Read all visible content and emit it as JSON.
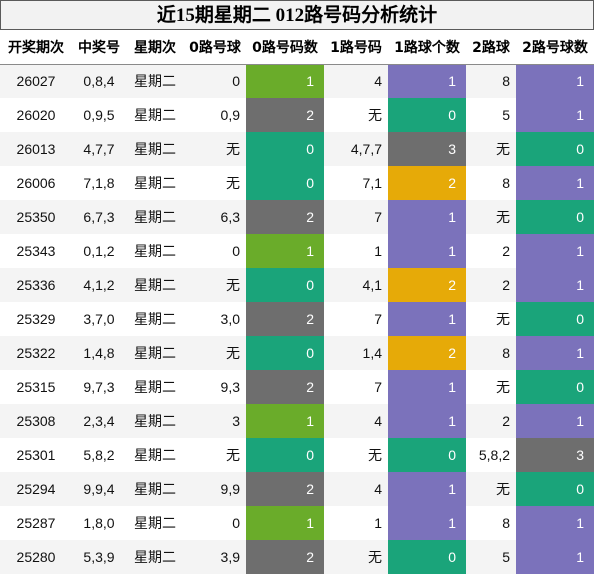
{
  "title": "近15期星期二 012路号码分析统计",
  "headers": [
    "开奖期次",
    "中奖号",
    "星期次",
    "0路号球",
    "0路号码数",
    "1路号码",
    "1路球个数",
    "2路球",
    "2路号球数"
  ],
  "rows": [
    {
      "issue": "26027",
      "num": "0,8,4",
      "wd": "星期二",
      "r0": "0",
      "c0": "1",
      "r1": "4",
      "c1": "1",
      "r2": "8",
      "c2": "1"
    },
    {
      "issue": "26020",
      "num": "0,9,5",
      "wd": "星期二",
      "r0": "0,9",
      "c0": "2",
      "r1": "无",
      "c1": "0",
      "r2": "5",
      "c2": "1"
    },
    {
      "issue": "26013",
      "num": "4,7,7",
      "wd": "星期二",
      "r0": "无",
      "c0": "0",
      "r1": "4,7,7",
      "c1": "3",
      "r2": "无",
      "c2": "0"
    },
    {
      "issue": "26006",
      "num": "7,1,8",
      "wd": "星期二",
      "r0": "无",
      "c0": "0",
      "r1": "7,1",
      "c1": "2",
      "r2": "8",
      "c2": "1"
    },
    {
      "issue": "25350",
      "num": "6,7,3",
      "wd": "星期二",
      "r0": "6,3",
      "c0": "2",
      "r1": "7",
      "c1": "1",
      "r2": "无",
      "c2": "0"
    },
    {
      "issue": "25343",
      "num": "0,1,2",
      "wd": "星期二",
      "r0": "0",
      "c0": "1",
      "r1": "1",
      "c1": "1",
      "r2": "2",
      "c2": "1"
    },
    {
      "issue": "25336",
      "num": "4,1,2",
      "wd": "星期二",
      "r0": "无",
      "c0": "0",
      "r1": "4,1",
      "c1": "2",
      "r2": "2",
      "c2": "1"
    },
    {
      "issue": "25329",
      "num": "3,7,0",
      "wd": "星期二",
      "r0": "3,0",
      "c0": "2",
      "r1": "7",
      "c1": "1",
      "r2": "无",
      "c2": "0"
    },
    {
      "issue": "25322",
      "num": "1,4,8",
      "wd": "星期二",
      "r0": "无",
      "c0": "0",
      "r1": "1,4",
      "c1": "2",
      "r2": "8",
      "c2": "1"
    },
    {
      "issue": "25315",
      "num": "9,7,3",
      "wd": "星期二",
      "r0": "9,3",
      "c0": "2",
      "r1": "7",
      "c1": "1",
      "r2": "无",
      "c2": "0"
    },
    {
      "issue": "25308",
      "num": "2,3,4",
      "wd": "星期二",
      "r0": "3",
      "c0": "1",
      "r1": "4",
      "c1": "1",
      "r2": "2",
      "c2": "1"
    },
    {
      "issue": "25301",
      "num": "5,8,2",
      "wd": "星期二",
      "r0": "无",
      "c0": "0",
      "r1": "无",
      "c1": "0",
      "r2": "5,8,2",
      "c2": "3"
    },
    {
      "issue": "25294",
      "num": "9,9,4",
      "wd": "星期二",
      "r0": "9,9",
      "c0": "2",
      "r1": "4",
      "c1": "1",
      "r2": "无",
      "c2": "0"
    },
    {
      "issue": "25287",
      "num": "1,8,0",
      "wd": "星期二",
      "r0": "0",
      "c0": "1",
      "r1": "1",
      "c1": "1",
      "r2": "8",
      "c2": "1"
    },
    {
      "issue": "25280",
      "num": "5,3,9",
      "wd": "星期二",
      "r0": "3,9",
      "c0": "2",
      "r1": "无",
      "c1": "0",
      "r2": "5",
      "c2": "1"
    }
  ],
  "colors": {
    "count_zero": "#1aa47a",
    "count_one_route0": "#6aac2a",
    "count_one": "#7b72bb",
    "count_two_route0": "#6e6e6e",
    "count_two_route1": "#e6aa08",
    "count_three": "#6e6e6e"
  }
}
